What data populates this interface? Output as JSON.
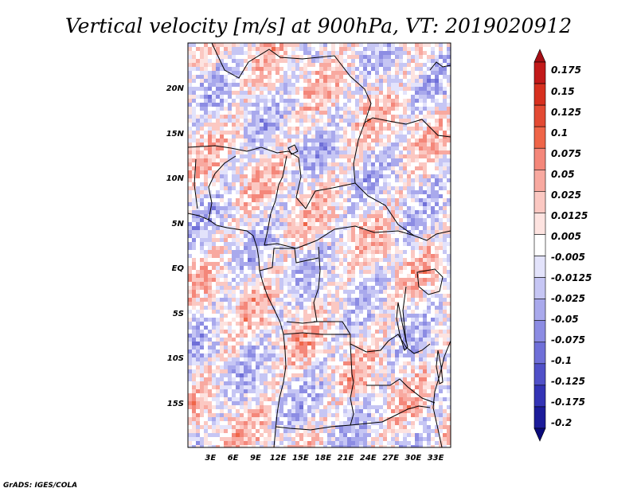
{
  "chart_data": {
    "type": "heatmap",
    "title": "Vertical velocity [m/s] at 900hPa, VT: 2019020912",
    "variable": "Vertical velocity",
    "units": "m/s",
    "level": "900hPa",
    "valid_time": "2019020912",
    "lon_range": [
      0,
      35
    ],
    "lat_range": [
      -20,
      25
    ],
    "x_ticks": [
      {
        "value": 3,
        "label": "3E"
      },
      {
        "value": 6,
        "label": "6E"
      },
      {
        "value": 9,
        "label": "9E"
      },
      {
        "value": 12,
        "label": "12E"
      },
      {
        "value": 15,
        "label": "15E"
      },
      {
        "value": 18,
        "label": "18E"
      },
      {
        "value": 21,
        "label": "21E"
      },
      {
        "value": 24,
        "label": "24E"
      },
      {
        "value": 27,
        "label": "27E"
      },
      {
        "value": 30,
        "label": "30E"
      },
      {
        "value": 33,
        "label": "33E"
      }
    ],
    "y_ticks": [
      {
        "value": 20,
        "label": "20N"
      },
      {
        "value": 15,
        "label": "15N"
      },
      {
        "value": 10,
        "label": "10N"
      },
      {
        "value": 5,
        "label": "5N"
      },
      {
        "value": 0,
        "label": "EQ"
      },
      {
        "value": -5,
        "label": "5S"
      },
      {
        "value": -10,
        "label": "10S"
      },
      {
        "value": -15,
        "label": "15S"
      }
    ],
    "colorbar": {
      "min": -0.2,
      "max": 0.2,
      "levels": [
        {
          "label": "0.175",
          "value": 0.175
        },
        {
          "label": "0.15",
          "value": 0.15
        },
        {
          "label": "0.125",
          "value": 0.125
        },
        {
          "label": "0.1",
          "value": 0.1
        },
        {
          "label": "0.075",
          "value": 0.075
        },
        {
          "label": "0.05",
          "value": 0.05
        },
        {
          "label": "0.025",
          "value": 0.025
        },
        {
          "label": "0.0125",
          "value": 0.0125
        },
        {
          "label": "0.005",
          "value": 0.005
        },
        {
          "label": "-0.005",
          "value": -0.005
        },
        {
          "label": "-0.0125",
          "value": -0.0125
        },
        {
          "label": "-0.025",
          "value": -0.025
        },
        {
          "label": "-0.05",
          "value": -0.05
        },
        {
          "label": "-0.075",
          "value": -0.075
        },
        {
          "label": "-0.1",
          "value": -0.1
        },
        {
          "label": "-0.125",
          "value": -0.125
        },
        {
          "label": "-0.175",
          "value": -0.175
        },
        {
          "label": "-0.2",
          "value": -0.2
        }
      ],
      "colors": [
        "#a50f15",
        "#c21a1a",
        "#d7301f",
        "#e34a33",
        "#ef6548",
        "#f4877a",
        "#f8a9a0",
        "#fbc8c2",
        "#fde3e0",
        "#ffffff",
        "#e3e3fb",
        "#c6c6f4",
        "#a9a9ec",
        "#8c8ce3",
        "#6f6fd8",
        "#5050c8",
        "#3333b5",
        "#1c1c9a",
        "#0a0a7a"
      ]
    }
  },
  "footer": {
    "credit": "GrADS: IGES/COLA"
  }
}
